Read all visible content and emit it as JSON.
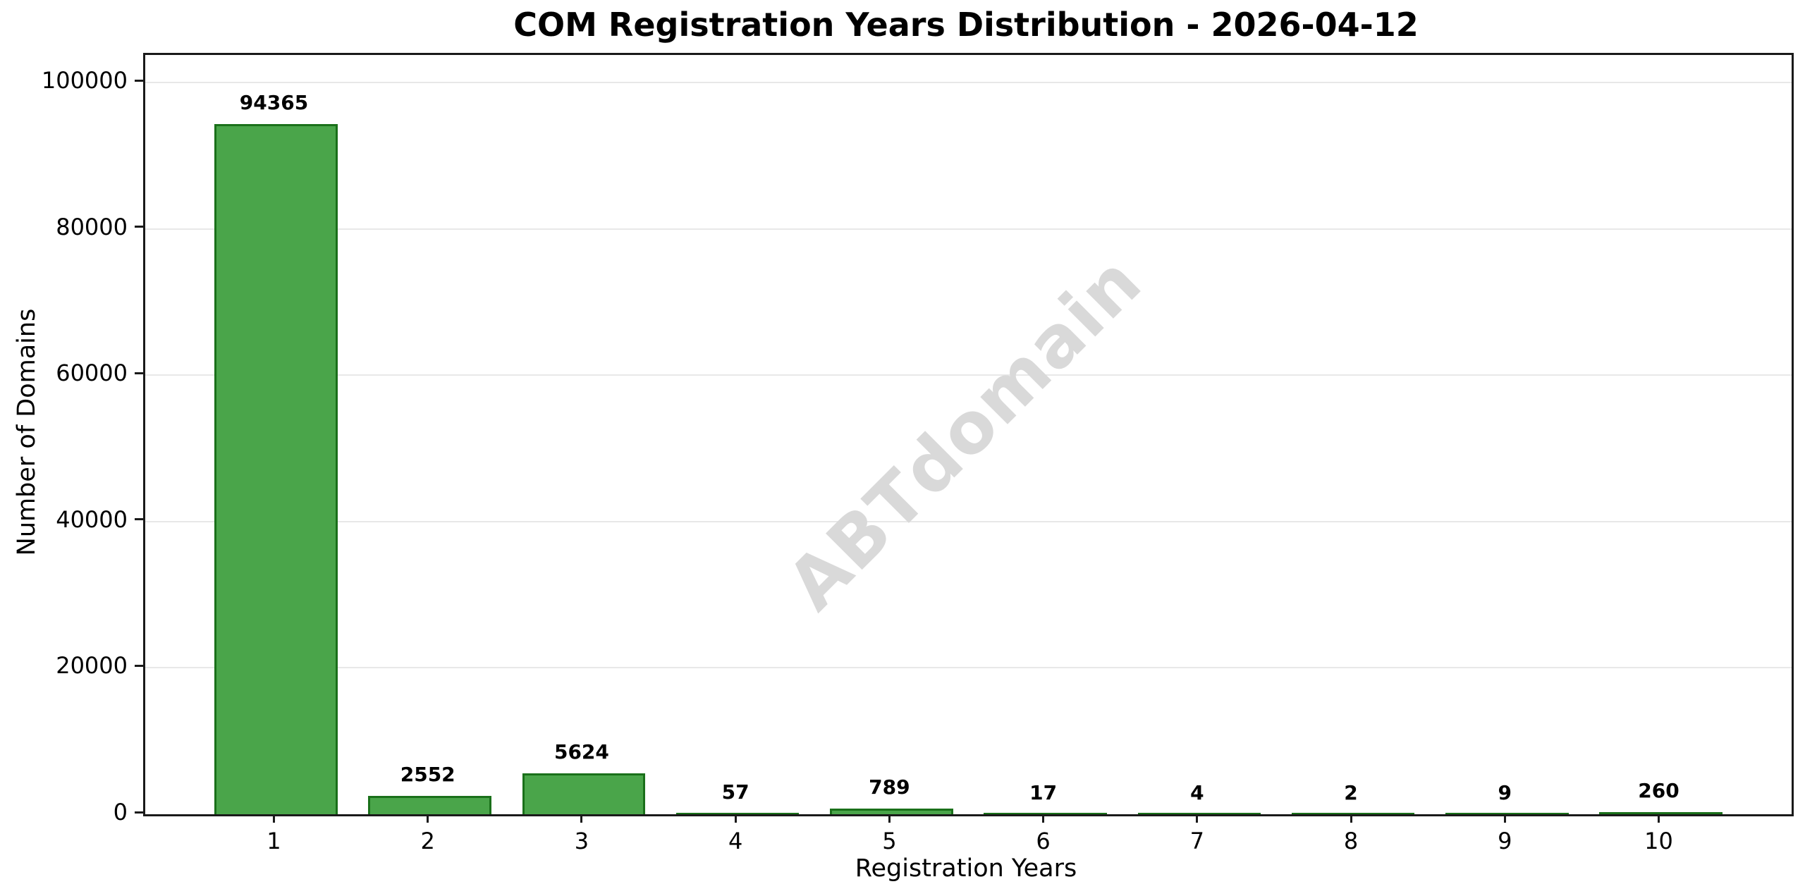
{
  "chart_data": {
    "type": "bar",
    "title": "COM Registration Years Distribution - 2026-04-12",
    "xlabel": "Registration Years",
    "ylabel": "Number of Domains",
    "categories": [
      "1",
      "2",
      "3",
      "4",
      "5",
      "6",
      "7",
      "8",
      "9",
      "10"
    ],
    "values": [
      94365,
      2552,
      5624,
      57,
      789,
      17,
      4,
      2,
      9,
      260
    ],
    "bar_value_labels": [
      "94365",
      "2552",
      "5624",
      "57",
      "789",
      "17",
      "4",
      "2",
      "9",
      "260"
    ],
    "yticks": [
      0,
      20000,
      40000,
      60000,
      80000,
      100000
    ],
    "ytick_labels": [
      "0",
      "20000",
      "40000",
      "60000",
      "80000",
      "100000"
    ],
    "ylim": [
      0,
      103800
    ],
    "grid": "horizontal",
    "legend": "none",
    "watermark": "ABTdomain",
    "colors": {
      "bar_fill": "#4aa54a",
      "bar_edge": "#1a701a",
      "gridline": "#e8e8e8",
      "axis": "#1a1a1a",
      "watermark": "#d9d9d9",
      "background": "#ffffff",
      "text": "#000000"
    }
  }
}
